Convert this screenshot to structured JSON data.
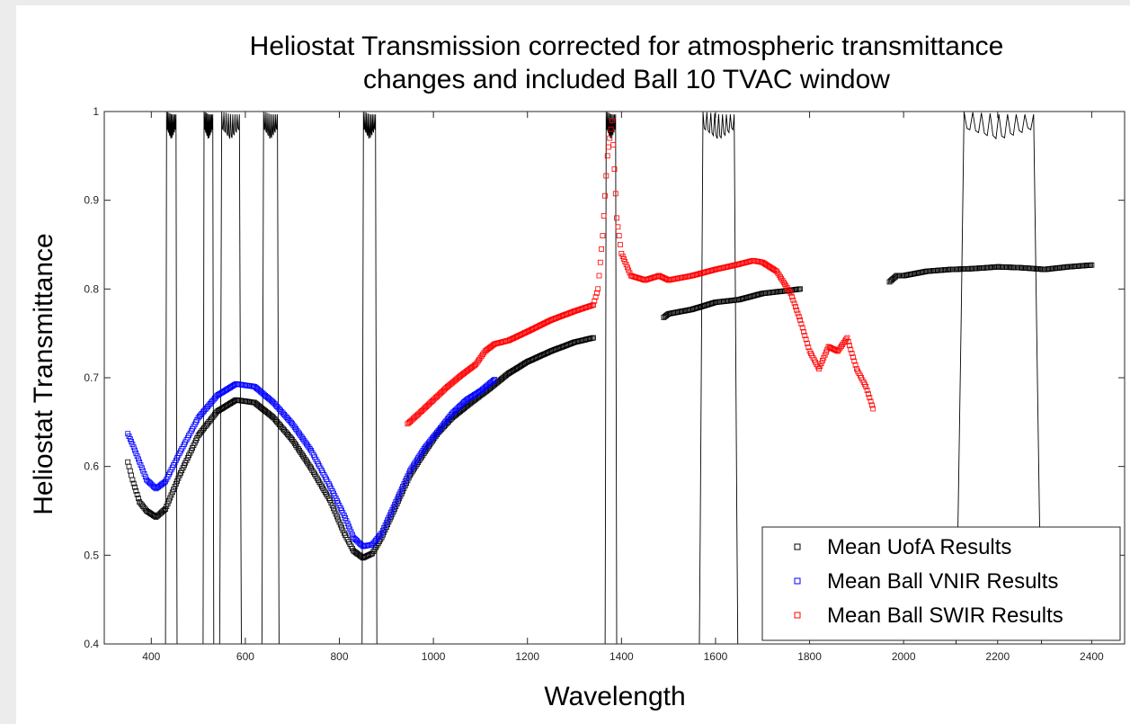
{
  "chart_data": {
    "type": "scatter",
    "title": [
      "Heliostat Transmission corrected for atmospheric transmittance",
      "changes and included Ball 10 TVAC window"
    ],
    "xlabel": "Wavelength",
    "ylabel": "Heliostat Transmittance",
    "xlim": [
      300,
      2470
    ],
    "ylim": [
      0.4,
      1.0
    ],
    "xticks": [
      400,
      600,
      800,
      1000,
      1200,
      1400,
      1600,
      1800,
      2000,
      2200,
      2400
    ],
    "yticks": [
      0.4,
      0.5,
      0.6,
      0.7,
      0.8,
      0.9,
      1
    ],
    "ytick_labels": [
      "0.4",
      "0.5",
      "0.6",
      "0.7",
      "0.8",
      "0.9",
      "1"
    ],
    "grid": false,
    "legend_position": "bottom-right",
    "legend": [
      "Mean UofA Results",
      "Mean Ball VNIR Results",
      "Mean Ball SWIR Results"
    ],
    "series": [
      {
        "name": "Mean UofA Results",
        "color": "#000000",
        "marker": "square",
        "segments": [
          [
            [
              350,
              0.605
            ],
            [
              360,
              0.585
            ],
            [
              375,
              0.56
            ],
            [
              390,
              0.55
            ],
            [
              410,
              0.543
            ],
            [
              430,
              0.552
            ],
            [
              460,
              0.59
            ],
            [
              500,
              0.635
            ],
            [
              540,
              0.662
            ],
            [
              580,
              0.675
            ],
            [
              620,
              0.672
            ],
            [
              660,
              0.655
            ],
            [
              700,
              0.63
            ],
            [
              740,
              0.598
            ],
            [
              780,
              0.562
            ],
            [
              810,
              0.525
            ],
            [
              830,
              0.505
            ],
            [
              850,
              0.497
            ],
            [
              870,
              0.502
            ],
            [
              890,
              0.52
            ],
            [
              920,
              0.555
            ],
            [
              950,
              0.59
            ],
            [
              980,
              0.615
            ],
            [
              1010,
              0.638
            ],
            [
              1040,
              0.655
            ],
            [
              1080,
              0.672
            ],
            [
              1120,
              0.688
            ],
            [
              1160,
              0.705
            ],
            [
              1200,
              0.718
            ],
            [
              1250,
              0.73
            ],
            [
              1300,
              0.74
            ],
            [
              1340,
              0.745
            ]
          ],
          [
            [
              1490,
              0.768
            ],
            [
              1500,
              0.772
            ],
            [
              1550,
              0.777
            ],
            [
              1600,
              0.785
            ],
            [
              1650,
              0.788
            ],
            [
              1700,
              0.795
            ],
            [
              1750,
              0.798
            ],
            [
              1780,
              0.8
            ]
          ],
          [
            [
              1970,
              0.808
            ],
            [
              1985,
              0.815
            ],
            [
              2000,
              0.815
            ],
            [
              2050,
              0.82
            ],
            [
              2100,
              0.822
            ],
            [
              2150,
              0.823
            ],
            [
              2200,
              0.825
            ],
            [
              2250,
              0.824
            ],
            [
              2300,
              0.822
            ],
            [
              2350,
              0.825
            ],
            [
              2400,
              0.827
            ]
          ]
        ]
      },
      {
        "name": "Mean Ball VNIR Results",
        "color": "#0000ff",
        "marker": "square",
        "segments": [
          [
            [
              350,
              0.637
            ],
            [
              360,
              0.625
            ],
            [
              375,
              0.605
            ],
            [
              390,
              0.585
            ],
            [
              410,
              0.575
            ],
            [
              430,
              0.583
            ],
            [
              460,
              0.615
            ],
            [
              500,
              0.655
            ],
            [
              540,
              0.68
            ],
            [
              580,
              0.693
            ],
            [
              620,
              0.69
            ],
            [
              660,
              0.672
            ],
            [
              700,
              0.648
            ],
            [
              740,
              0.618
            ],
            [
              780,
              0.578
            ],
            [
              810,
              0.545
            ],
            [
              830,
              0.52
            ],
            [
              850,
              0.51
            ],
            [
              870,
              0.512
            ],
            [
              890,
              0.525
            ],
            [
              920,
              0.56
            ],
            [
              950,
              0.595
            ],
            [
              980,
              0.62
            ],
            [
              1010,
              0.64
            ],
            [
              1040,
              0.66
            ],
            [
              1070,
              0.675
            ],
            [
              1100,
              0.685
            ],
            [
              1130,
              0.698
            ]
          ]
        ]
      },
      {
        "name": "Mean Ball SWIR Results",
        "color": "#ff0000",
        "marker": "square",
        "segments": [
          [
            [
              945,
              0.648
            ],
            [
              970,
              0.66
            ],
            [
              1000,
              0.675
            ],
            [
              1030,
              0.69
            ],
            [
              1060,
              0.703
            ],
            [
              1090,
              0.715
            ],
            [
              1110,
              0.73
            ],
            [
              1130,
              0.738
            ],
            [
              1160,
              0.742
            ],
            [
              1200,
              0.752
            ],
            [
              1250,
              0.765
            ],
            [
              1300,
              0.775
            ],
            [
              1340,
              0.782
            ],
            [
              1350,
              0.8
            ],
            [
              1360,
              0.86
            ],
            [
              1370,
              0.95
            ],
            [
              1380,
              0.99
            ],
            [
              1390,
              0.88
            ],
            [
              1400,
              0.84
            ],
            [
              1420,
              0.815
            ],
            [
              1450,
              0.81
            ],
            [
              1480,
              0.815
            ],
            [
              1500,
              0.81
            ],
            [
              1550,
              0.815
            ],
            [
              1600,
              0.822
            ],
            [
              1650,
              0.828
            ],
            [
              1680,
              0.832
            ],
            [
              1700,
              0.83
            ],
            [
              1730,
              0.82
            ],
            [
              1760,
              0.795
            ],
            [
              1780,
              0.765
            ],
            [
              1800,
              0.73
            ],
            [
              1820,
              0.71
            ],
            [
              1840,
              0.735
            ],
            [
              1860,
              0.73
            ],
            [
              1880,
              0.745
            ],
            [
              1900,
              0.71
            ],
            [
              1920,
              0.69
            ],
            [
              1935,
              0.665
            ]
          ]
        ]
      }
    ],
    "reference_curve": {
      "name": "filter transmission bands",
      "color": "#000000",
      "bands": [
        {
          "x0": 430,
          "x1": 455,
          "peak": 1.0
        },
        {
          "x0": 510,
          "x1": 533,
          "peak": 1.0
        },
        {
          "x0": 545,
          "x1": 592,
          "peak": 1.0
        },
        {
          "x0": 635,
          "x1": 672,
          "peak": 1.0
        },
        {
          "x0": 848,
          "x1": 880,
          "peak": 1.0
        },
        {
          "x0": 1365,
          "x1": 1390,
          "peak": 1.0
        },
        {
          "x0": 1565,
          "x1": 1648,
          "peak": 1.0
        },
        {
          "x0": 2110,
          "x1": 2295,
          "peak": 1.0
        }
      ]
    }
  }
}
